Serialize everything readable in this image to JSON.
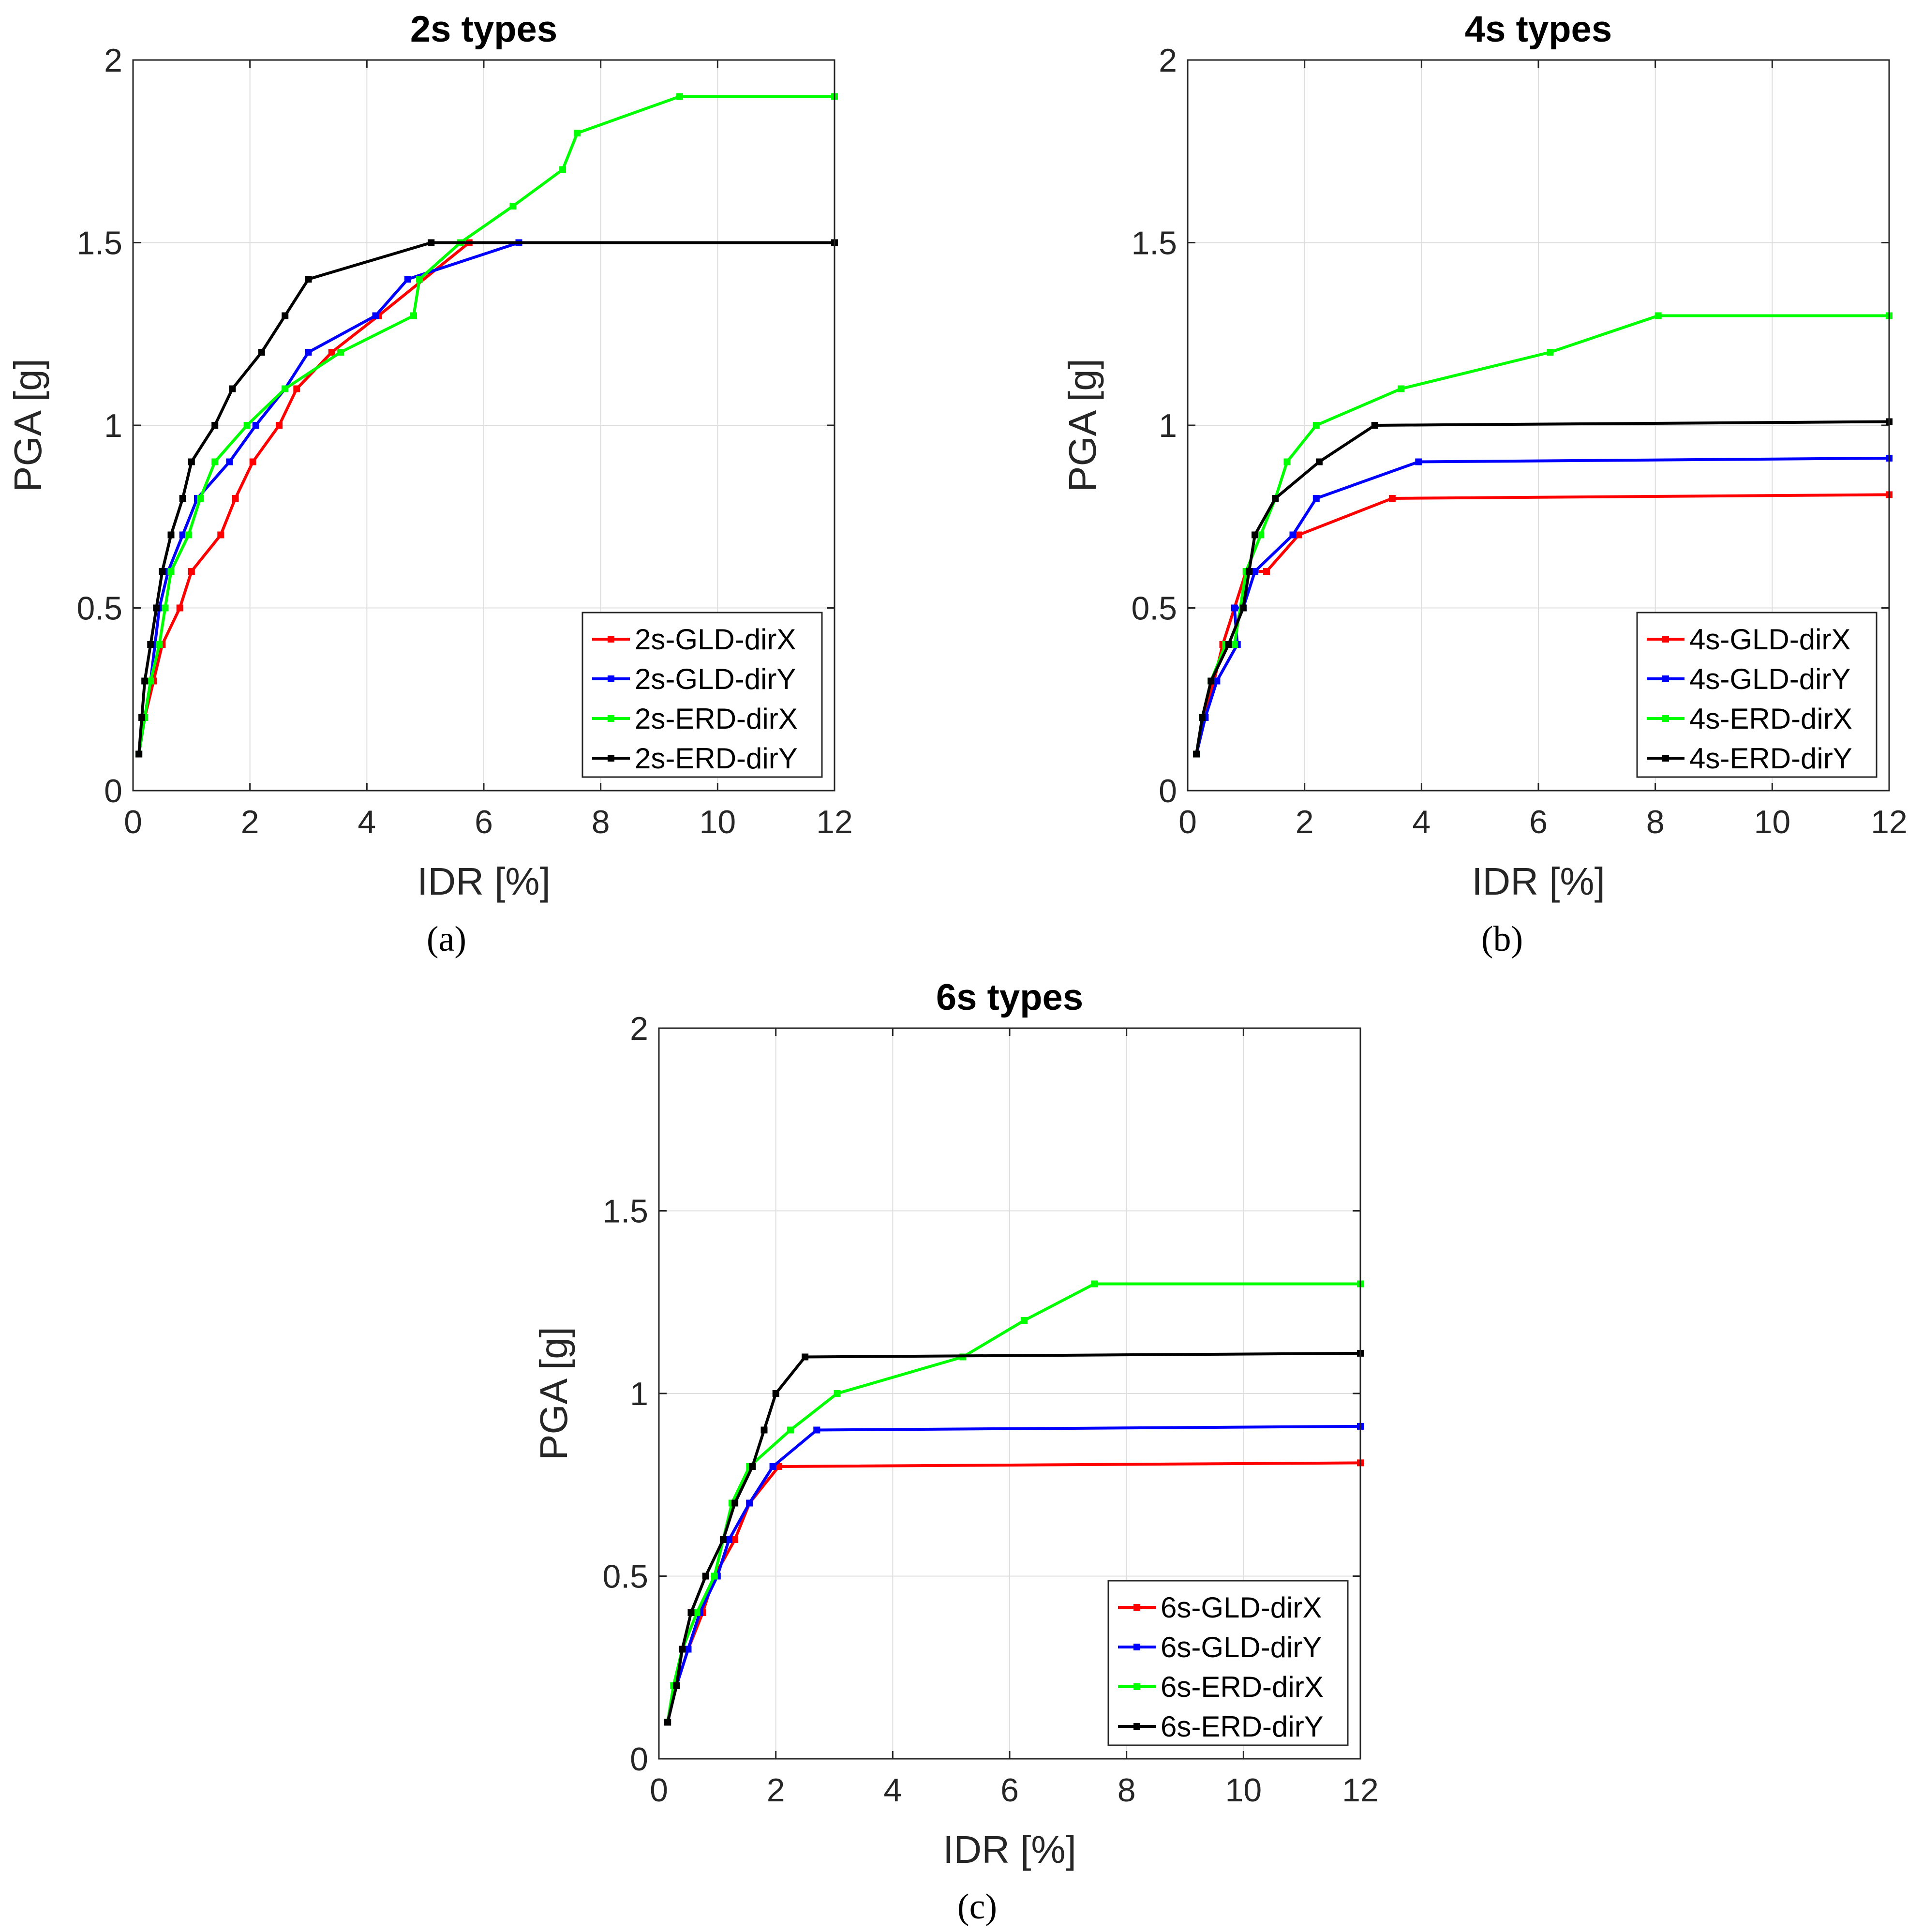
{
  "chart_data": [
    {
      "type": "line",
      "title": "2s types",
      "caption": "(a)",
      "xlabel": "IDR [%]",
      "ylabel": "PGA [g]",
      "xlim": [
        0,
        12
      ],
      "ylim": [
        0,
        2
      ],
      "xticks": [
        "0",
        "2",
        "4",
        "6",
        "8",
        "10",
        "12"
      ],
      "yticks": [
        "0",
        "0.5",
        "1",
        "1.5",
        "2"
      ],
      "grid": true,
      "legend_position": "bottom-right",
      "series": [
        {
          "name": "2s-GLD-dirX",
          "color": "#ff0000",
          "x": [
            0.1,
            0.2,
            0.35,
            0.5,
            0.8,
            1.0,
            1.5,
            1.75,
            2.05,
            2.5,
            2.8,
            3.4,
            4.2,
            5.75,
            12
          ],
          "y": [
            0.1,
            0.2,
            0.3,
            0.4,
            0.5,
            0.6,
            0.7,
            0.8,
            0.9,
            1.0,
            1.1,
            1.2,
            1.3,
            1.5,
            1.5
          ]
        },
        {
          "name": "2s-GLD-dirY",
          "color": "#0000ff",
          "x": [
            0.1,
            0.2,
            0.3,
            0.45,
            0.6,
            0.85,
            1.1,
            1.65,
            2.1,
            2.6,
            3.0,
            4.15,
            4.7,
            6.6,
            12
          ],
          "y": [
            0.1,
            0.2,
            0.3,
            0.5,
            0.6,
            0.7,
            0.8,
            0.9,
            1.0,
            1.1,
            1.2,
            1.3,
            1.4,
            1.5,
            1.5
          ]
        },
        {
          "name": "2s-ERD-dirX",
          "color": "#00ff00",
          "x": [
            0.1,
            0.2,
            0.3,
            0.45,
            0.55,
            0.65,
            0.95,
            1.15,
            1.4,
            1.95,
            2.6,
            3.55,
            4.8,
            4.9,
            5.6,
            6.5,
            7.35,
            7.6,
            9.35,
            12
          ],
          "y": [
            0.1,
            0.2,
            0.3,
            0.4,
            0.5,
            0.6,
            0.7,
            0.8,
            0.9,
            1.0,
            1.1,
            1.2,
            1.3,
            1.4,
            1.5,
            1.6,
            1.7,
            1.8,
            1.9,
            1.9
          ]
        },
        {
          "name": "2s-ERD-dirY",
          "color": "#000000",
          "x": [
            0.1,
            0.15,
            0.2,
            0.3,
            0.4,
            0.5,
            0.65,
            0.85,
            1.0,
            1.4,
            1.7,
            2.2,
            2.6,
            3.0,
            5.1,
            12
          ],
          "y": [
            0.1,
            0.2,
            0.3,
            0.4,
            0.5,
            0.6,
            0.7,
            0.8,
            0.9,
            1.0,
            1.1,
            1.2,
            1.3,
            1.4,
            1.5,
            1.5
          ]
        }
      ]
    },
    {
      "type": "line",
      "title": "4s types",
      "caption": "(b)",
      "xlabel": "IDR [%]",
      "ylabel": "PGA [g]",
      "xlim": [
        0,
        12
      ],
      "ylim": [
        0,
        2
      ],
      "xticks": [
        "0",
        "2",
        "4",
        "6",
        "8",
        "10",
        "12"
      ],
      "yticks": [
        "0",
        "0.5",
        "1",
        "1.5",
        "2"
      ],
      "grid": true,
      "legend_position": "bottom-right",
      "series": [
        {
          "name": "4s-GLD-dirX",
          "color": "#ff0000",
          "x": [
            0.15,
            0.3,
            0.45,
            0.6,
            0.8,
            1.0,
            1.35,
            1.9,
            3.5,
            12
          ],
          "y": [
            0.1,
            0.2,
            0.3,
            0.4,
            0.5,
            0.6,
            0.6,
            0.7,
            0.8,
            0.81
          ]
        },
        {
          "name": "4s-GLD-dirY",
          "color": "#0000ff",
          "x": [
            0.15,
            0.3,
            0.5,
            0.85,
            0.8,
            0.95,
            1.15,
            1.8,
            2.2,
            3.95,
            12
          ],
          "y": [
            0.1,
            0.2,
            0.3,
            0.4,
            0.5,
            0.5,
            0.6,
            0.7,
            0.8,
            0.9,
            0.91
          ]
        },
        {
          "name": "4s-ERD-dirX",
          "color": "#00ff00",
          "x": [
            0.15,
            0.25,
            0.4,
            0.65,
            0.8,
            1.0,
            1.25,
            1.5,
            1.7,
            2.2,
            3.65,
            6.2,
            8.05,
            12
          ],
          "y": [
            0.1,
            0.2,
            0.3,
            0.4,
            0.4,
            0.6,
            0.7,
            0.8,
            0.9,
            1.0,
            1.1,
            1.2,
            1.3,
            1.3
          ]
        },
        {
          "name": "4s-ERD-dirY",
          "color": "#000000",
          "x": [
            0.15,
            0.25,
            0.4,
            0.7,
            0.95,
            1.05,
            1.15,
            1.5,
            2.25,
            3.2,
            12
          ],
          "y": [
            0.1,
            0.2,
            0.3,
            0.4,
            0.5,
            0.6,
            0.7,
            0.8,
            0.9,
            1.0,
            1.01
          ]
        }
      ]
    },
    {
      "type": "line",
      "title": "6s types",
      "caption": "(c)",
      "xlabel": "IDR [%]",
      "ylabel": "PGA [g]",
      "xlim": [
        0,
        12
      ],
      "ylim": [
        0,
        2
      ],
      "xticks": [
        "0",
        "2",
        "4",
        "6",
        "8",
        "10",
        "12"
      ],
      "yticks": [
        "0",
        "0.5",
        "1",
        "1.5",
        "2"
      ],
      "grid": true,
      "legend_position": "bottom-right",
      "series": [
        {
          "name": "6s-GLD-dirX",
          "color": "#ff0000",
          "x": [
            0.15,
            0.3,
            0.5,
            0.75,
            0.95,
            1.3,
            1.55,
            2.05,
            12
          ],
          "y": [
            0.1,
            0.2,
            0.3,
            0.4,
            0.5,
            0.6,
            0.7,
            0.8,
            0.81
          ]
        },
        {
          "name": "6s-GLD-dirY",
          "color": "#0000ff",
          "x": [
            0.15,
            0.3,
            0.5,
            0.7,
            1.0,
            1.2,
            1.55,
            1.95,
            2.7,
            12
          ],
          "y": [
            0.1,
            0.2,
            0.3,
            0.4,
            0.5,
            0.6,
            0.7,
            0.8,
            0.9,
            0.91
          ]
        },
        {
          "name": "6s-ERD-dirX",
          "color": "#00ff00",
          "x": [
            0.15,
            0.25,
            0.4,
            0.65,
            0.95,
            1.25,
            1.55,
            2.25,
            3.05,
            5.2,
            6.25,
            7.45,
            12
          ],
          "y": [
            0.1,
            0.2,
            0.3,
            0.4,
            0.5,
            0.7,
            0.8,
            0.9,
            1.0,
            1.1,
            1.2,
            1.3,
            1.3
          ]
        },
        {
          "name": "6s-ERD-dirY",
          "color": "#000000",
          "x": [
            0.15,
            0.3,
            0.4,
            0.55,
            0.8,
            1.1,
            1.3,
            1.6,
            1.8,
            2.0,
            2.5,
            12
          ],
          "y": [
            0.1,
            0.2,
            0.3,
            0.4,
            0.5,
            0.6,
            0.7,
            0.8,
            0.9,
            1.0,
            1.1,
            1.11
          ]
        }
      ]
    }
  ]
}
